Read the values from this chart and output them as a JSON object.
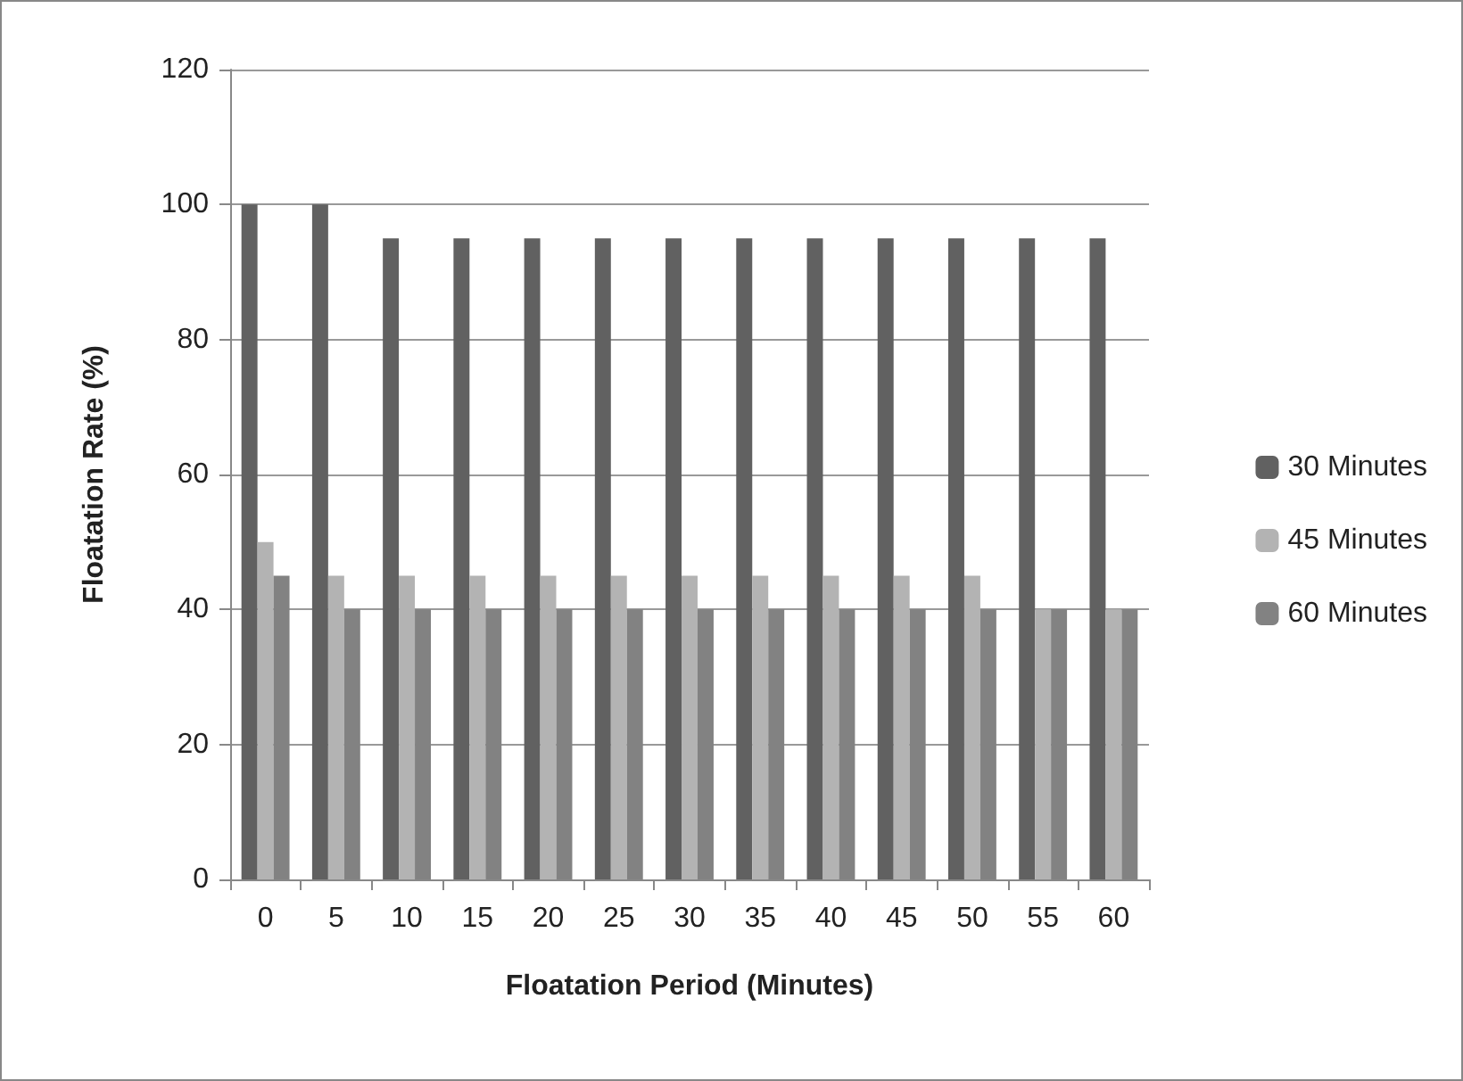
{
  "chart_data": {
    "type": "bar",
    "xlabel": "Floatation Period (Minutes)",
    "ylabel": "Floatation Rate (%)",
    "categories": [
      "0",
      "5",
      "10",
      "15",
      "20",
      "25",
      "30",
      "35",
      "40",
      "45",
      "50",
      "55",
      "60"
    ],
    "series": [
      {
        "name": "30 Minutes",
        "color": "#616161",
        "values": [
          100,
          100,
          95,
          95,
          95,
          95,
          95,
          95,
          95,
          95,
          95,
          95,
          95
        ]
      },
      {
        "name": "45 Minutes",
        "color": "#b3b3b3",
        "values": [
          50,
          45,
          45,
          45,
          45,
          45,
          45,
          45,
          45,
          45,
          45,
          40,
          40
        ]
      },
      {
        "name": "60 Minutes",
        "color": "#828282",
        "values": [
          45,
          40,
          40,
          40,
          40,
          40,
          40,
          40,
          40,
          40,
          40,
          40,
          40
        ]
      }
    ],
    "ylim": [
      0,
      120
    ],
    "yticks": [
      0,
      20,
      40,
      60,
      80,
      100,
      120
    ],
    "grid": "y",
    "legend": "right"
  }
}
